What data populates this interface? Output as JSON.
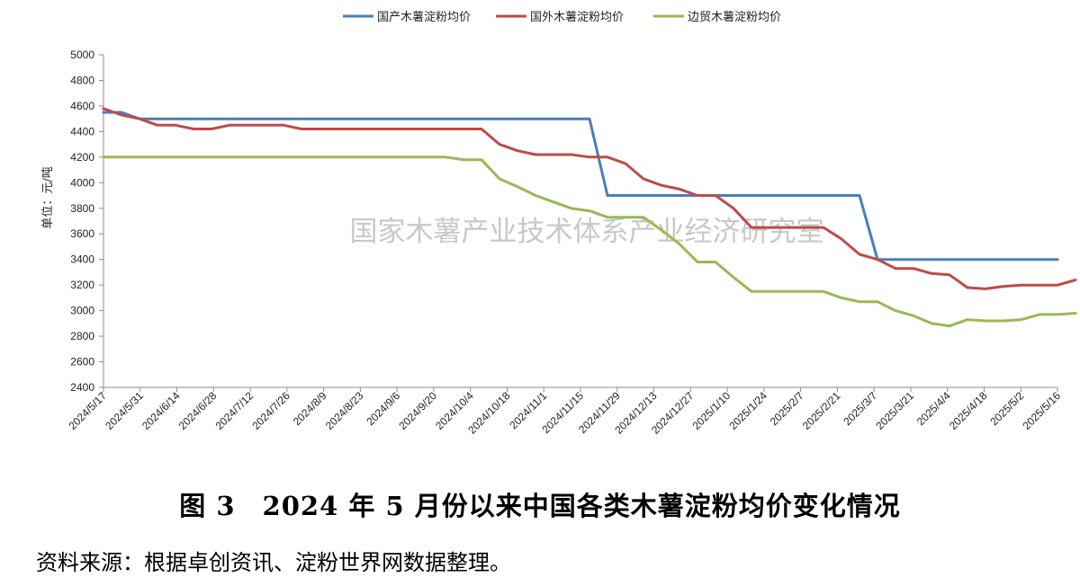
{
  "chart_data": {
    "type": "line",
    "ylabel": "单位：元/吨",
    "ylim": [
      2400,
      5000
    ],
    "yticks": [
      2400,
      2600,
      2800,
      3000,
      3200,
      3400,
      3600,
      3800,
      4000,
      4200,
      4400,
      4600,
      4800,
      5000
    ],
    "grid": false,
    "legend_position": "top",
    "watermark": "国家木薯产业技术体系产业经济研究室",
    "x_tick_labels": [
      "2024/5/17",
      "2024/5/31",
      "2024/6/14",
      "2024/6/28",
      "2024/7/12",
      "2024/7/26",
      "2024/8/9",
      "2024/8/23",
      "2024/9/6",
      "2024/9/20",
      "2024/10/4",
      "2024/10/18",
      "2024/11/1",
      "2024/11/15",
      "2024/11/29",
      "2024/12/13",
      "2024/12/27",
      "2025/1/10",
      "2025/1/24",
      "2025/2/7",
      "2025/2/21",
      "2025/3/7",
      "2025/3/21",
      "2025/4/4",
      "2025/4/18",
      "2025/5/2",
      "2025/5/16"
    ],
    "series": [
      {
        "name": "国产木薯淀粉均价",
        "color": "#4a7ebb",
        "values": [
          4550,
          4550,
          4500,
          4500,
          4500,
          4500,
          4500,
          4500,
          4500,
          4500,
          4500,
          4500,
          4500,
          4500,
          4500,
          4500,
          4500,
          4500,
          4500,
          4500,
          4500,
          4500,
          4500,
          4500,
          4500,
          4500,
          4500,
          4500,
          3900,
          3900,
          3900,
          3900,
          3900,
          3900,
          3900,
          3900,
          3900,
          3900,
          3900,
          3900,
          3900,
          3900,
          3900,
          3400,
          3400,
          3400,
          3400,
          3400,
          3400,
          3400,
          3400,
          3400,
          3400,
          3400
        ]
      },
      {
        "name": "国外木薯淀粉均价",
        "color": "#be4b48",
        "values": [
          4580,
          4530,
          4500,
          4450,
          4450,
          4420,
          4420,
          4450,
          4450,
          4450,
          4450,
          4420,
          4420,
          4420,
          4420,
          4420,
          4420,
          4420,
          4420,
          4420,
          4420,
          4420,
          4300,
          4250,
          4220,
          4220,
          4220,
          4200,
          4200,
          4150,
          4030,
          3980,
          3950,
          3900,
          3900,
          3800,
          3650,
          3650,
          3650,
          3650,
          3650,
          3560,
          3440,
          3400,
          3330,
          3330,
          3290,
          3280,
          3180,
          3170,
          3190,
          3200,
          3200,
          3200,
          3240
        ]
      },
      {
        "name": "边贸木薯淀粉均价",
        "color": "#98b954",
        "values": [
          4200,
          4200,
          4200,
          4200,
          4200,
          4200,
          4200,
          4200,
          4200,
          4200,
          4200,
          4200,
          4200,
          4200,
          4200,
          4200,
          4200,
          4200,
          4200,
          4200,
          4180,
          4180,
          4030,
          3970,
          3900,
          3850,
          3800,
          3780,
          3730,
          3730,
          3730,
          3630,
          3520,
          3380,
          3380,
          3260,
          3150,
          3150,
          3150,
          3150,
          3150,
          3100,
          3070,
          3070,
          3000,
          2960,
          2900,
          2880,
          2930,
          2920,
          2920,
          2930,
          2970,
          2970,
          2980
        ]
      }
    ]
  },
  "caption": "图 3　2024 年 5 月份以来中国各类木薯淀粉均价变化情况",
  "source": "资料来源：根据卓创资讯、淀粉世界网数据整理。"
}
